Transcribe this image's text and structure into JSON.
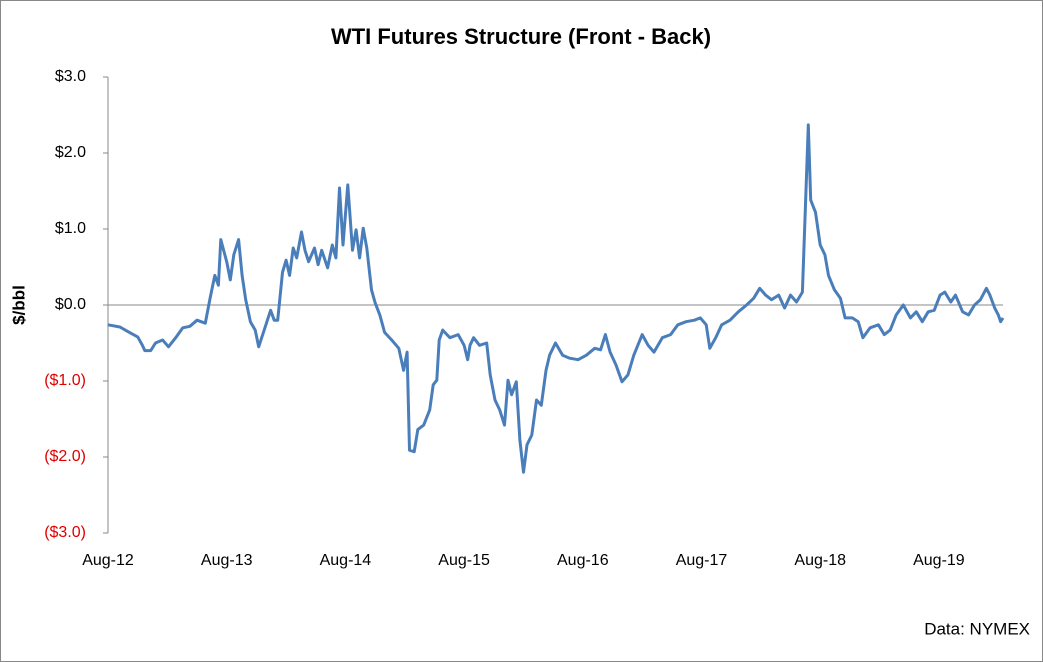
{
  "chart_data": {
    "type": "line",
    "title": "WTI Futures Structure (Front - Back)",
    "y_label": "$/bbl",
    "source": "Data: NYMEX",
    "xlim": [
      2012.58,
      2020.12
    ],
    "xticks": [
      {
        "value": 2012.58,
        "label": "Aug-12"
      },
      {
        "value": 2013.58,
        "label": "Aug-13"
      },
      {
        "value": 2014.58,
        "label": "Aug-14"
      },
      {
        "value": 2015.58,
        "label": "Aug-15"
      },
      {
        "value": 2016.58,
        "label": "Aug-16"
      },
      {
        "value": 2017.58,
        "label": "Aug-17"
      },
      {
        "value": 2018.58,
        "label": "Aug-18"
      },
      {
        "value": 2019.58,
        "label": "Aug-19"
      }
    ],
    "ylim": [
      -3,
      3
    ],
    "yticks": [
      {
        "value": 3,
        "label": "$3.0"
      },
      {
        "value": 2,
        "label": "$2.0"
      },
      {
        "value": 1,
        "label": "$1.0"
      },
      {
        "value": 0,
        "label": "$0.0"
      },
      {
        "value": -1,
        "label": "($1.0)"
      },
      {
        "value": -2,
        "label": "($2.0)"
      },
      {
        "value": -3,
        "label": "($3.0)"
      }
    ],
    "x": [
      2012.58,
      2012.68,
      2012.77,
      2012.83,
      2012.87,
      2012.89,
      2012.94,
      2012.98,
      2013.04,
      2013.09,
      2013.15,
      2013.21,
      2013.27,
      2013.33,
      2013.4,
      2013.44,
      2013.48,
      2013.51,
      2013.53,
      2013.58,
      2013.61,
      2013.64,
      2013.68,
      2013.71,
      2013.74,
      2013.78,
      2013.82,
      2013.85,
      2013.91,
      2013.95,
      2013.98,
      2014.01,
      2014.05,
      2014.08,
      2014.11,
      2014.14,
      2014.17,
      2014.21,
      2014.24,
      2014.27,
      2014.32,
      2014.35,
      2014.38,
      2014.43,
      2014.47,
      2014.5,
      2014.53,
      2014.56,
      2014.6,
      2014.64,
      2014.67,
      2014.7,
      2014.73,
      2014.76,
      2014.8,
      2014.83,
      2014.87,
      2014.91,
      2014.97,
      2015.03,
      2015.07,
      2015.1,
      2015.12,
      2015.16,
      2015.19,
      2015.24,
      2015.29,
      2015.32,
      2015.35,
      2015.37,
      2015.4,
      2015.46,
      2015.53,
      2015.58,
      2015.61,
      2015.63,
      2015.66,
      2015.71,
      2015.77,
      2015.8,
      2015.84,
      2015.88,
      2015.92,
      2015.95,
      2015.98,
      2016.02,
      2016.05,
      2016.08,
      2016.11,
      2016.15,
      2016.19,
      2016.23,
      2016.27,
      2016.3,
      2016.35,
      2016.41,
      2016.47,
      2016.54,
      2016.61,
      2016.68,
      2016.73,
      2016.77,
      2016.81,
      2016.86,
      2016.91,
      2016.96,
      2017.01,
      2017.08,
      2017.13,
      2017.18,
      2017.25,
      2017.32,
      2017.38,
      2017.45,
      2017.52,
      2017.57,
      2017.62,
      2017.65,
      2017.7,
      2017.75,
      2017.82,
      2017.89,
      2017.96,
      2018.02,
      2018.07,
      2018.12,
      2018.17,
      2018.23,
      2018.28,
      2018.33,
      2018.38,
      2018.43,
      2018.46,
      2018.48,
      2018.5,
      2018.54,
      2018.58,
      2018.62,
      2018.65,
      2018.7,
      2018.75,
      2018.79,
      2018.85,
      2018.9,
      2018.94,
      2019.0,
      2019.07,
      2019.12,
      2019.17,
      2019.22,
      2019.28,
      2019.34,
      2019.39,
      2019.44,
      2019.49,
      2019.54,
      2019.59,
      2019.63,
      2019.68,
      2019.72,
      2019.78,
      2019.83,
      2019.88,
      2019.93,
      2019.98,
      2020.01,
      2020.05,
      2020.08,
      2020.1,
      2020.12
    ],
    "series": [
      {
        "name": "Front - Back",
        "color": "#4a7ebb",
        "values": [
          -0.26,
          -0.29,
          -0.37,
          -0.42,
          -0.53,
          -0.6,
          -0.6,
          -0.5,
          -0.46,
          -0.55,
          -0.43,
          -0.3,
          -0.28,
          -0.2,
          -0.24,
          0.09,
          0.39,
          0.26,
          0.86,
          0.57,
          0.33,
          0.66,
          0.86,
          0.39,
          0.07,
          -0.22,
          -0.33,
          -0.55,
          -0.26,
          -0.07,
          -0.2,
          -0.2,
          0.43,
          0.59,
          0.39,
          0.75,
          0.62,
          0.96,
          0.72,
          0.57,
          0.75,
          0.53,
          0.72,
          0.49,
          0.79,
          0.62,
          1.54,
          0.79,
          1.58,
          0.72,
          0.99,
          0.62,
          1.01,
          0.75,
          0.2,
          0.03,
          -0.13,
          -0.36,
          -0.46,
          -0.57,
          -0.86,
          -0.62,
          -1.91,
          -1.93,
          -1.64,
          -1.58,
          -1.38,
          -1.05,
          -0.99,
          -0.46,
          -0.33,
          -0.43,
          -0.39,
          -0.53,
          -0.72,
          -0.53,
          -0.43,
          -0.53,
          -0.5,
          -0.92,
          -1.25,
          -1.38,
          -1.58,
          -0.99,
          -1.18,
          -1.01,
          -1.78,
          -2.2,
          -1.84,
          -1.71,
          -1.25,
          -1.32,
          -0.86,
          -0.66,
          -0.5,
          -0.66,
          -0.7,
          -0.72,
          -0.66,
          -0.57,
          -0.59,
          -0.39,
          -0.62,
          -0.79,
          -1.01,
          -0.92,
          -0.66,
          -0.39,
          -0.53,
          -0.62,
          -0.43,
          -0.39,
          -0.26,
          -0.22,
          -0.2,
          -0.17,
          -0.26,
          -0.57,
          -0.43,
          -0.26,
          -0.2,
          -0.09,
          0,
          0.09,
          0.22,
          0.13,
          0.07,
          0.13,
          -0.04,
          0.13,
          0.04,
          0.17,
          1.51,
          2.37,
          1.38,
          1.22,
          0.79,
          0.66,
          0.39,
          0.2,
          0.09,
          -0.17,
          -0.17,
          -0.22,
          -0.43,
          -0.3,
          -0.26,
          -0.39,
          -0.33,
          -0.13,
          0,
          -0.17,
          -0.09,
          -0.22,
          -0.09,
          -0.07,
          0.13,
          0.17,
          0.04,
          0.13,
          -0.09,
          -0.13,
          0,
          0.07,
          0.22,
          0.13,
          -0.04,
          -0.13,
          -0.22,
          -0.17
        ]
      }
    ]
  }
}
